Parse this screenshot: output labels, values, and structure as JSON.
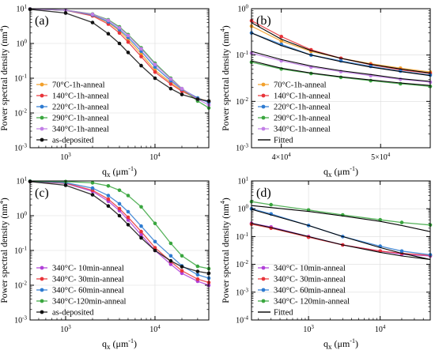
{
  "chart_data": [
    {
      "panel_label": "(a)",
      "type": "line",
      "xscale": "log",
      "yscale": "log",
      "xlim": [
        400,
        40000
      ],
      "ylim": [
        0.001,
        10
      ],
      "xticks": [
        {
          "v": 1000,
          "b": "10",
          "e": "3"
        },
        {
          "v": 10000,
          "b": "10",
          "e": "4"
        }
      ],
      "yticks": [
        {
          "v": 0.001,
          "b": "10",
          "e": "-3"
        },
        {
          "v": 0.01,
          "b": "10",
          "e": "-2"
        },
        {
          "v": 0.1,
          "b": "10",
          "e": "-1"
        },
        {
          "v": 1,
          "b": "10",
          "e": "0"
        },
        {
          "v": 10,
          "b": "10",
          "e": "1"
        }
      ],
      "xlabel": "qx (μm-1)",
      "ylabel": "Power spectral density (nm4)",
      "legend_position": "lower-left",
      "series": [
        {
          "name": "70°C-1h-anneal",
          "color": "#f2a02b",
          "marker": "circle",
          "fit": false,
          "x": [
            400,
            1000,
            2000,
            3000,
            4000,
            5000,
            7000,
            10000,
            15000,
            20000,
            30000,
            40000
          ],
          "y": [
            9.8,
            9.0,
            6.5,
            4.0,
            2.3,
            1.3,
            0.5,
            0.17,
            0.075,
            0.045,
            0.027,
            0.021
          ]
        },
        {
          "name": "140°C-1h-anneal",
          "color": "#e8343a",
          "marker": "circle",
          "fit": false,
          "x": [
            400,
            1000,
            2000,
            3000,
            4000,
            5000,
            7000,
            10000,
            15000,
            20000,
            30000,
            40000
          ],
          "y": [
            9.8,
            9.0,
            6.2,
            3.6,
            2.0,
            1.1,
            0.42,
            0.15,
            0.068,
            0.042,
            0.026,
            0.021
          ]
        },
        {
          "name": "220°C-1h-anneal",
          "color": "#2e7bd1",
          "marker": "circle",
          "fit": false,
          "x": [
            400,
            1000,
            2000,
            3000,
            4000,
            5000,
            7000,
            10000,
            15000,
            20000,
            30000,
            40000
          ],
          "y": [
            9.8,
            9.0,
            6.6,
            4.2,
            2.5,
            1.5,
            0.6,
            0.21,
            0.085,
            0.048,
            0.027,
            0.02
          ]
        },
        {
          "name": "290°C-1h-anneal",
          "color": "#3aa63f",
          "marker": "circle",
          "fit": false,
          "x": [
            400,
            1000,
            2000,
            3000,
            4000,
            5000,
            7000,
            10000,
            15000,
            20000,
            30000,
            40000
          ],
          "y": [
            9.8,
            9.1,
            7.0,
            4.8,
            3.0,
            1.8,
            0.75,
            0.27,
            0.1,
            0.05,
            0.022,
            0.014
          ]
        },
        {
          "name": "340°C-1h-anneal",
          "color": "#c27ee6",
          "marker": "circle",
          "fit": false,
          "x": [
            400,
            1000,
            2000,
            3000,
            4000,
            5000,
            7000,
            10000,
            15000,
            20000,
            30000,
            40000
          ],
          "y": [
            9.8,
            9.1,
            6.9,
            4.6,
            2.8,
            1.7,
            0.7,
            0.25,
            0.095,
            0.05,
            0.025,
            0.017
          ]
        },
        {
          "name": "as-deposited",
          "color": "#111111",
          "marker": "circle",
          "fit": false,
          "x": [
            400,
            1000,
            2000,
            3000,
            4000,
            5000,
            7000,
            10000,
            15000,
            20000,
            30000,
            40000
          ],
          "y": [
            9.6,
            7.5,
            4.0,
            1.9,
            1.0,
            0.55,
            0.23,
            0.1,
            0.05,
            0.034,
            0.025,
            0.022
          ]
        }
      ]
    },
    {
      "panel_label": "(b)",
      "type": "line",
      "xscale": "linear",
      "yscale": "log",
      "xlim": [
        37000,
        55000
      ],
      "ylim": [
        0.001,
        1
      ],
      "xticks": [
        {
          "v": 40000,
          "b": "4×10",
          "e": "4"
        },
        {
          "v": 50000,
          "b": "5×10",
          "e": "4"
        }
      ],
      "yticks": [
        {
          "v": 0.001,
          "b": "10",
          "e": "-3"
        },
        {
          "v": 0.01,
          "b": "10",
          "e": "-2"
        },
        {
          "v": 0.1,
          "b": "10",
          "e": "-1"
        },
        {
          "v": 1,
          "b": "10",
          "e": "0"
        }
      ],
      "xlabel": "qx (μm-1)",
      "ylabel": "Power spectral density (nm4)",
      "legend_position": "lower-left",
      "series": [
        {
          "name": "70°C-1h-anneal",
          "color": "#f2a02b",
          "marker": "circle",
          "fit": false,
          "x": [
            37000,
            40000,
            43000,
            46000,
            49000,
            52000,
            55000
          ],
          "y": [
            0.42,
            0.2,
            0.12,
            0.085,
            0.065,
            0.052,
            0.043
          ]
        },
        {
          "name": "140°C-1h-anneal",
          "color": "#e8343a",
          "marker": "circle",
          "fit": false,
          "x": [
            37000,
            40000,
            43000,
            46000,
            49000,
            52000,
            55000
          ],
          "y": [
            0.55,
            0.25,
            0.13,
            0.085,
            0.062,
            0.048,
            0.04
          ]
        },
        {
          "name": "220°C-1h-anneal",
          "color": "#2e7bd1",
          "marker": "circle",
          "fit": false,
          "x": [
            37000,
            40000,
            43000,
            46000,
            49000,
            52000,
            55000
          ],
          "y": [
            0.3,
            0.17,
            0.1,
            0.075,
            0.057,
            0.045,
            0.037
          ]
        },
        {
          "name": "290°C-1h-anneal",
          "color": "#3aa63f",
          "marker": "circle",
          "fit": false,
          "x": [
            37000,
            40000,
            43000,
            46000,
            49000,
            52000,
            55000
          ],
          "y": [
            0.07,
            0.05,
            0.04,
            0.033,
            0.028,
            0.024,
            0.021
          ]
        },
        {
          "name": "340°C-1h-anneal",
          "color": "#c27ee6",
          "marker": "circle",
          "fit": false,
          "x": [
            37000,
            40000,
            43000,
            46000,
            49000,
            52000,
            55000
          ],
          "y": [
            0.11,
            0.075,
            0.055,
            0.044,
            0.036,
            0.03,
            0.026
          ]
        },
        {
          "name": "Fitted",
          "color": "#000000",
          "marker": "line",
          "fit": false,
          "x": [
            37000,
            40000,
            43000,
            46000,
            49000,
            52000,
            55000
          ],
          "y": [
            0.5,
            0.22,
            0.125,
            0.085,
            0.063,
            0.05,
            0.041
          ]
        },
        {
          "name": "",
          "color": "#000000",
          "marker": "line",
          "fit": true,
          "x": [
            37000,
            40000,
            43000,
            46000,
            49000,
            52000,
            55000
          ],
          "y": [
            0.3,
            0.16,
            0.1,
            0.072,
            0.055,
            0.044,
            0.036
          ]
        },
        {
          "name": "",
          "color": "#000000",
          "marker": "line",
          "fit": true,
          "x": [
            37000,
            40000,
            43000,
            46000,
            49000,
            52000,
            55000
          ],
          "y": [
            0.12,
            0.08,
            0.058,
            0.046,
            0.038,
            0.031,
            0.027
          ]
        },
        {
          "name": "",
          "color": "#000000",
          "marker": "line",
          "fit": true,
          "x": [
            37000,
            40000,
            43000,
            46000,
            49000,
            52000,
            55000
          ],
          "y": [
            0.075,
            0.052,
            0.041,
            0.034,
            0.029,
            0.025,
            0.022
          ]
        }
      ]
    },
    {
      "panel_label": "(c)",
      "type": "line",
      "xscale": "log",
      "yscale": "log",
      "xlim": [
        400,
        40000
      ],
      "ylim": [
        0.001,
        10
      ],
      "xticks": [
        {
          "v": 1000,
          "b": "10",
          "e": "3"
        },
        {
          "v": 10000,
          "b": "10",
          "e": "4"
        }
      ],
      "yticks": [
        {
          "v": 0.001,
          "b": "10",
          "e": "-3"
        },
        {
          "v": 0.01,
          "b": "10",
          "e": "-2"
        },
        {
          "v": 0.1,
          "b": "10",
          "e": "-1"
        },
        {
          "v": 1,
          "b": "10",
          "e": "0"
        },
        {
          "v": 10,
          "b": "10",
          "e": "1"
        }
      ],
      "xlabel": "qx (μm-1)",
      "ylabel": "Power spectral density (nm4)",
      "legend_position": "lower-left",
      "series": [
        {
          "name": "340°C- 10min-anneal",
          "color": "#b040d8",
          "marker": "circle",
          "fit": false,
          "x": [
            400,
            1000,
            2000,
            3000,
            4000,
            5000,
            7000,
            10000,
            15000,
            20000,
            30000,
            40000
          ],
          "y": [
            9.7,
            8.5,
            5.0,
            2.6,
            1.4,
            0.75,
            0.28,
            0.1,
            0.04,
            0.022,
            0.013,
            0.01
          ]
        },
        {
          "name": "340°C- 30min-anneal",
          "color": "#e8343a",
          "marker": "circle",
          "fit": false,
          "x": [
            400,
            1000,
            2000,
            3000,
            4000,
            5000,
            7000,
            10000,
            15000,
            20000,
            30000,
            40000
          ],
          "y": [
            9.7,
            8.6,
            5.4,
            3.0,
            1.6,
            0.9,
            0.35,
            0.12,
            0.048,
            0.026,
            0.015,
            0.012
          ]
        },
        {
          "name": "340°C- 60min-anneal",
          "color": "#2e7bd1",
          "marker": "circle",
          "fit": false,
          "x": [
            400,
            1000,
            2000,
            3000,
            4000,
            5000,
            7000,
            10000,
            15000,
            20000,
            30000,
            40000
          ],
          "y": [
            9.8,
            8.9,
            6.2,
            3.8,
            2.2,
            1.3,
            0.5,
            0.18,
            0.07,
            0.036,
            0.02,
            0.016
          ]
        },
        {
          "name": "340°C-120min-anneal",
          "color": "#3aa63f",
          "marker": "circle",
          "fit": false,
          "x": [
            400,
            1000,
            2000,
            3000,
            4000,
            5000,
            7000,
            10000,
            15000,
            20000,
            30000,
            40000
          ],
          "y": [
            9.8,
            9.6,
            8.8,
            7.2,
            5.4,
            3.8,
            1.8,
            0.6,
            0.16,
            0.07,
            0.035,
            0.03
          ]
        },
        {
          "name": "as-deposited",
          "color": "#111111",
          "marker": "circle",
          "fit": false,
          "x": [
            400,
            1000,
            2000,
            3000,
            4000,
            5000,
            7000,
            10000,
            15000,
            20000,
            30000,
            40000
          ],
          "y": [
            9.6,
            7.5,
            4.0,
            1.9,
            1.0,
            0.55,
            0.23,
            0.1,
            0.05,
            0.034,
            0.025,
            0.022
          ]
        }
      ]
    },
    {
      "panel_label": "(d)",
      "type": "line",
      "xscale": "log",
      "yscale": "log",
      "xlim": [
        160,
        50000
      ],
      "ylim": [
        0.0001,
        10
      ],
      "xticks": [
        {
          "v": 1000,
          "b": "10",
          "e": "3"
        },
        {
          "v": 10000,
          "b": "10",
          "e": "4"
        }
      ],
      "yticks": [
        {
          "v": 0.0001,
          "b": "10",
          "e": "-4"
        },
        {
          "v": 0.001,
          "b": "10",
          "e": "-3"
        },
        {
          "v": 0.01,
          "b": "10",
          "e": "-2"
        },
        {
          "v": 0.1,
          "b": "10",
          "e": "-1"
        },
        {
          "v": 1,
          "b": "10",
          "e": "0"
        },
        {
          "v": 10,
          "b": "10",
          "e": "1"
        }
      ],
      "xlabel": "qx (μm-1)",
      "ylabel": "Power spectral density (nm4)",
      "legend_position": "lower-left",
      "series": [
        {
          "name": "340°C- 10min-anneal",
          "color": "#b040d8",
          "marker": "circle",
          "fit": false,
          "x": [
            160,
            300,
            1000,
            3000,
            10000,
            20000,
            50000
          ],
          "y": [
            0.3,
            0.22,
            0.1,
            0.05,
            0.03,
            0.023,
            0.02
          ]
        },
        {
          "name": "340°C- 30min-anneal",
          "color": "#e8343a",
          "marker": "circle",
          "fit": false,
          "x": [
            160,
            300,
            1000,
            3000,
            10000,
            20000,
            50000
          ],
          "y": [
            0.28,
            0.2,
            0.095,
            0.05,
            0.03,
            0.025,
            0.021
          ]
        },
        {
          "name": "340°C- 60min-anneal",
          "color": "#2e7bd1",
          "marker": "circle",
          "fit": false,
          "x": [
            160,
            300,
            1000,
            3000,
            10000,
            20000,
            50000
          ],
          "y": [
            1.0,
            0.65,
            0.25,
            0.1,
            0.045,
            0.03,
            0.022
          ]
        },
        {
          "name": "340°C- 120min-anneal",
          "color": "#3aa63f",
          "marker": "circle",
          "fit": false,
          "x": [
            160,
            300,
            1000,
            3000,
            10000,
            20000,
            50000
          ],
          "y": [
            1.8,
            1.4,
            0.9,
            0.6,
            0.4,
            0.32,
            0.26
          ]
        },
        {
          "name": "Fitted",
          "color": "#000000",
          "marker": "line",
          "fit": false,
          "x": [
            160,
            300,
            1000,
            3000,
            10000,
            20000,
            50000
          ],
          "y": [
            0.3,
            0.21,
            0.1,
            0.05,
            0.027,
            0.02,
            0.015
          ]
        },
        {
          "name": "",
          "color": "#000000",
          "marker": "line",
          "fit": true,
          "x": [
            160,
            300,
            1000,
            3000,
            10000,
            20000,
            50000
          ],
          "y": [
            0.95,
            0.6,
            0.25,
            0.1,
            0.04,
            0.025,
            0.015
          ]
        },
        {
          "name": "",
          "color": "#000000",
          "marker": "line",
          "fit": true,
          "x": [
            160,
            300,
            1000,
            3000,
            10000,
            20000,
            50000
          ],
          "y": [
            1.3,
            1.1,
            0.8,
            0.55,
            0.35,
            0.25,
            0.15
          ]
        }
      ]
    }
  ]
}
